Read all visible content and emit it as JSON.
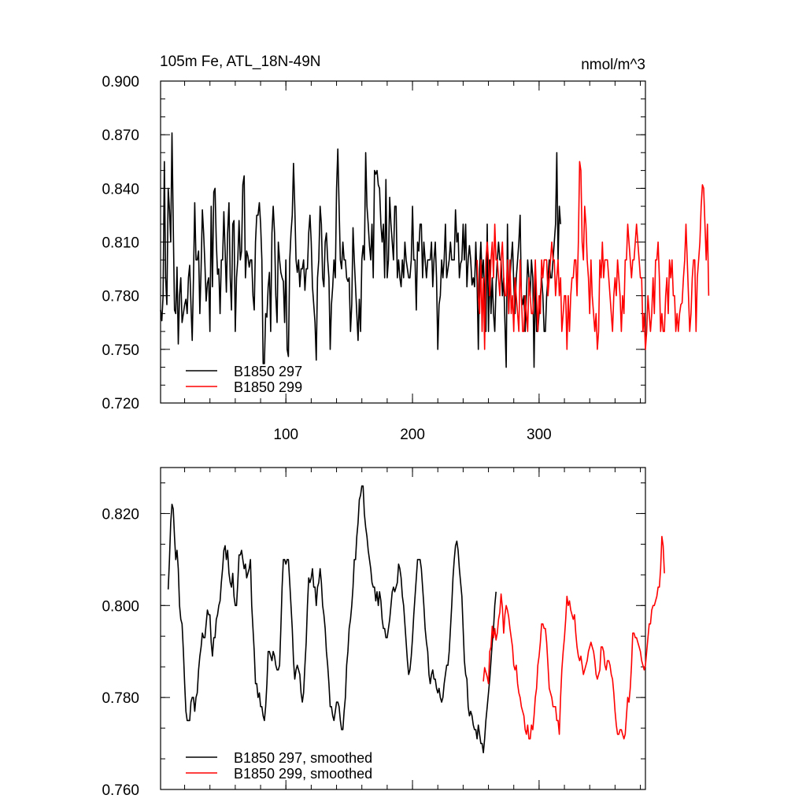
{
  "colors": {
    "series_297": "#000000",
    "series_299": "#ff0000",
    "axes": "#000000",
    "background": "#ffffff"
  },
  "chart_data": [
    {
      "type": "line",
      "title": "105m Fe, ATL_18N-49N",
      "units": "nmol/m^3",
      "xlabel": "",
      "ylabel": "",
      "xlim": [
        1,
        384
      ],
      "ylim": [
        0.72,
        0.9
      ],
      "xticks": [
        100,
        200,
        300
      ],
      "xtick_labels": [
        "100",
        "200",
        "300"
      ],
      "yticks": [
        0.72,
        0.75,
        0.78,
        0.81,
        0.84,
        0.87,
        0.9
      ],
      "ytick_labels": [
        "0.720",
        "0.750",
        "0.780",
        "0.810",
        "0.840",
        "0.870",
        "0.900"
      ],
      "legend": "bottom-left",
      "series": [
        {
          "name": "B1850 297",
          "color": "#000000",
          "x_start": 1,
          "values": [
            0.772,
            0.766,
            0.78,
            0.855,
            0.79,
            0.775,
            0.84,
            0.828,
            0.81,
            0.871,
            0.82,
            0.772,
            0.77,
            0.796,
            0.753,
            0.78,
            0.79,
            0.765,
            0.77,
            0.775,
            0.778,
            0.77,
            0.79,
            0.797,
            0.775,
            0.755,
            0.79,
            0.832,
            0.8,
            0.8,
            0.805,
            0.77,
            0.795,
            0.828,
            0.815,
            0.798,
            0.777,
            0.787,
            0.79,
            0.76,
            0.83,
            0.785,
            0.838,
            0.84,
            0.81,
            0.792,
            0.795,
            0.77,
            0.8,
            0.8,
            0.827,
            0.805,
            0.782,
            0.815,
            0.832,
            0.79,
            0.772,
            0.82,
            0.822,
            0.76,
            0.79,
            0.8,
            0.822,
            0.8,
            0.805,
            0.842,
            0.847,
            0.79,
            0.805,
            0.802,
            0.796,
            0.8,
            0.8,
            0.78,
            0.772,
            0.81,
            0.825,
            0.825,
            0.832,
            0.82,
            0.8,
            0.742,
            0.742,
            0.77,
            0.768,
            0.785,
            0.793,
            0.76,
            0.815,
            0.83,
            0.815,
            0.78,
            0.765,
            0.81,
            0.8,
            0.793,
            0.79,
            0.788,
            0.765,
            0.8,
            0.75,
            0.746,
            0.8,
            0.815,
            0.825,
            0.854,
            0.83,
            0.8,
            0.793,
            0.8,
            0.785,
            0.795,
            0.795,
            0.8,
            0.783,
            0.795,
            0.795,
            0.815,
            0.825,
            0.81,
            0.785,
            0.775,
            0.765,
            0.744,
            0.79,
            0.8,
            0.83,
            0.82,
            0.79,
            0.785,
            0.81,
            0.815,
            0.8,
            0.79,
            0.75,
            0.775,
            0.785,
            0.8,
            0.79,
            0.84,
            0.862,
            0.83,
            0.8,
            0.795,
            0.81,
            0.8,
            0.8,
            0.79,
            0.788,
            0.79,
            0.76,
            0.775,
            0.818,
            0.8,
            0.785,
            0.77,
            0.755,
            0.778,
            0.76,
            0.8,
            0.808,
            0.8,
            0.86,
            0.83,
            0.82,
            0.808,
            0.8,
            0.82,
            0.79,
            0.85,
            0.848,
            0.85,
            0.842,
            0.84,
            0.82,
            0.81,
            0.82,
            0.79,
            0.845,
            0.79,
            0.8,
            0.835,
            0.82,
            0.81,
            0.8,
            0.83,
            0.83,
            0.79,
            0.8,
            0.79,
            0.785,
            0.8,
            0.79,
            0.81,
            0.8,
            0.795,
            0.79,
            0.79,
            0.8,
            0.83,
            0.8,
            0.8,
            0.772,
            0.81,
            0.805,
            0.82,
            0.82,
            0.79,
            0.81,
            0.8,
            0.79,
            0.8,
            0.8,
            0.8,
            0.81,
            0.785,
            0.8,
            0.81,
            0.79,
            0.75,
            0.775,
            0.78,
            0.8,
            0.79,
            0.8,
            0.82,
            0.79,
            0.795,
            0.8,
            0.81,
            0.8,
            0.8,
            0.8,
            0.828,
            0.81,
            0.815,
            0.79,
            0.798,
            0.8,
            0.82,
            0.8,
            0.82,
            0.785,
            0.8,
            0.808,
            0.8,
            0.786,
            0.79,
            0.785,
            0.81,
            0.788,
            0.75,
            0.795,
            0.81,
            0.79,
            0.8,
            0.78,
            0.76,
            0.82,
            0.76,
            0.8,
            0.77,
            0.79,
            0.77,
            0.76,
            0.786,
            0.8,
            0.81,
            0.8,
            0.8,
            0.78,
            0.79,
            0.765,
            0.74,
            0.82,
            0.77,
            0.79,
            0.8,
            0.81,
            0.787,
            0.77,
            0.79,
            0.8,
            0.81,
            0.825,
            0.78,
            0.775,
            0.78,
            0.76,
            0.78,
            0.8,
            0.79,
            0.78,
            0.8,
            0.79,
            0.74,
            0.79,
            0.76,
            0.76,
            0.77,
            0.78,
            0.79,
            0.78,
            0.76,
            0.76,
            0.78,
            0.79,
            0.8,
            0.79,
            0.79,
            0.8,
            0.81,
            0.82,
            0.86,
            0.8,
            0.83,
            0.82
          ]
        },
        {
          "name": "B1850 299",
          "color": "#ff0000",
          "x_start": 251,
          "values": [
            0.8,
            0.78,
            0.77,
            0.8,
            0.76,
            0.79,
            0.75,
            0.8,
            0.81,
            0.8,
            0.78,
            0.8,
            0.81,
            0.79,
            0.82,
            0.8,
            0.8,
            0.79,
            0.78,
            0.8,
            0.81,
            0.79,
            0.78,
            0.78,
            0.8,
            0.77,
            0.8,
            0.77,
            0.78,
            0.76,
            0.79,
            0.78,
            0.77,
            0.76,
            0.8,
            0.78,
            0.76,
            0.76,
            0.78,
            0.77,
            0.76,
            0.79,
            0.78,
            0.77,
            0.77,
            0.78,
            0.8,
            0.78,
            0.76,
            0.78,
            0.77,
            0.8,
            0.79,
            0.8,
            0.8,
            0.8,
            0.78,
            0.79,
            0.8,
            0.81,
            0.8,
            0.8,
            0.78,
            0.79,
            0.8,
            0.78,
            0.79,
            0.76,
            0.77,
            0.78,
            0.78,
            0.75,
            0.78,
            0.76,
            0.78,
            0.79,
            0.79,
            0.8,
            0.8,
            0.78,
            0.81,
            0.855,
            0.85,
            0.81,
            0.8,
            0.83,
            0.82,
            0.8,
            0.79,
            0.77,
            0.8,
            0.78,
            0.77,
            0.76,
            0.77,
            0.75,
            0.76,
            0.8,
            0.79,
            0.81,
            0.79,
            0.8,
            0.8,
            0.8,
            0.79,
            0.78,
            0.77,
            0.76,
            0.78,
            0.79,
            0.78,
            0.8,
            0.79,
            0.78,
            0.76,
            0.78,
            0.77,
            0.8,
            0.8,
            0.82,
            0.81,
            0.8,
            0.79,
            0.8,
            0.8,
            0.81,
            0.82,
            0.81,
            0.8,
            0.79,
            0.79,
            0.76,
            0.77,
            0.75,
            0.76,
            0.78,
            0.77,
            0.76,
            0.77,
            0.79,
            0.77,
            0.8,
            0.8,
            0.81,
            0.79,
            0.76,
            0.77,
            0.76,
            0.76,
            0.78,
            0.79,
            0.77,
            0.8,
            0.79,
            0.8,
            0.78,
            0.78,
            0.76,
            0.77,
            0.76,
            0.77,
            0.775,
            0.776,
            0.79,
            0.8,
            0.82,
            0.8,
            0.78,
            0.76,
            0.77,
            0.79,
            0.8,
            0.8,
            0.76,
            0.79,
            0.8,
            0.81,
            0.83,
            0.842,
            0.84,
            0.82,
            0.8,
            0.82,
            0.78
          ]
        }
      ]
    },
    {
      "type": "line",
      "title": "",
      "xlim": [
        1,
        384
      ],
      "ylim": [
        0.76,
        0.83
      ],
      "xticks": [
        100,
        200,
        300
      ],
      "yticks": [
        0.76,
        0.78,
        0.8,
        0.82
      ],
      "ytick_labels": [
        "0.760",
        "0.780",
        "0.800",
        "0.820"
      ],
      "legend": "bottom-left",
      "series": [
        {
          "name": "B1850 297, smoothed",
          "color": "#000000",
          "x_start": 7,
          "values": [
            0.8035,
            0.81,
            0.818,
            0.822,
            0.821,
            0.815,
            0.81,
            0.812,
            0.808,
            0.8,
            0.797,
            0.796,
            0.79,
            0.783,
            0.777,
            0.775,
            0.775,
            0.775,
            0.779,
            0.78,
            0.78,
            0.777,
            0.78,
            0.781,
            0.786,
            0.789,
            0.791,
            0.794,
            0.793,
            0.793,
            0.796,
            0.799,
            0.798,
            0.798,
            0.792,
            0.789,
            0.793,
            0.793,
            0.797,
            0.798,
            0.8,
            0.801,
            0.805,
            0.808,
            0.812,
            0.813,
            0.81,
            0.812,
            0.807,
            0.805,
            0.804,
            0.807,
            0.802,
            0.8,
            0.8,
            0.805,
            0.811,
            0.811,
            0.812,
            0.81,
            0.808,
            0.809,
            0.806,
            0.807,
            0.808,
            0.81,
            0.8,
            0.795,
            0.79,
            0.783,
            0.783,
            0.78,
            0.781,
            0.778,
            0.778,
            0.776,
            0.775,
            0.778,
            0.783,
            0.79,
            0.79,
            0.789,
            0.788,
            0.79,
            0.789,
            0.787,
            0.786,
            0.786,
            0.787,
            0.795,
            0.804,
            0.81,
            0.81,
            0.809,
            0.81,
            0.81,
            0.805,
            0.8,
            0.795,
            0.788,
            0.784,
            0.786,
            0.787,
            0.786,
            0.785,
            0.781,
            0.779,
            0.781,
            0.787,
            0.792,
            0.8,
            0.806,
            0.805,
            0.806,
            0.808,
            0.804,
            0.804,
            0.8,
            0.804,
            0.805,
            0.808,
            0.805,
            0.8,
            0.798,
            0.795,
            0.79,
            0.787,
            0.783,
            0.778,
            0.778,
            0.776,
            0.775,
            0.777,
            0.779,
            0.779,
            0.778,
            0.775,
            0.773,
            0.773,
            0.777,
            0.78,
            0.787,
            0.79,
            0.795,
            0.797,
            0.8,
            0.804,
            0.81,
            0.81,
            0.815,
            0.818,
            0.823,
            0.824,
            0.826,
            0.826,
            0.82,
            0.817,
            0.815,
            0.812,
            0.81,
            0.808,
            0.805,
            0.804,
            0.804,
            0.801,
            0.803,
            0.8,
            0.803,
            0.801,
            0.797,
            0.795,
            0.795,
            0.793,
            0.793,
            0.795,
            0.797,
            0.8,
            0.803,
            0.804,
            0.803,
            0.804,
            0.805,
            0.809,
            0.808,
            0.806,
            0.802,
            0.8,
            0.796,
            0.792,
            0.788,
            0.785,
            0.786,
            0.789,
            0.793,
            0.798,
            0.802,
            0.806,
            0.81,
            0.81,
            0.81,
            0.808,
            0.804,
            0.8,
            0.795,
            0.792,
            0.79,
            0.785,
            0.783,
            0.785,
            0.786,
            0.784,
            0.784,
            0.782,
            0.781,
            0.782,
            0.78,
            0.779,
            0.78,
            0.783,
            0.785,
            0.787,
            0.787,
            0.79,
            0.795,
            0.8,
            0.806,
            0.81,
            0.813,
            0.814,
            0.812,
            0.808,
            0.805,
            0.802,
            0.795,
            0.788,
            0.785,
            0.784,
            0.778,
            0.776,
            0.777,
            0.776,
            0.774,
            0.773,
            0.773,
            0.771,
            0.774,
            0.772,
            0.77,
            0.77,
            0.768,
            0.771,
            0.775,
            0.778,
            0.781,
            0.784,
            0.788,
            0.792,
            0.795,
            0.8,
            0.803
          ]
        },
        {
          "name": "B1850 299, smoothed",
          "color": "#ff0000",
          "x_start": 256,
          "values": [
            0.7835,
            0.7865,
            0.7855,
            0.7845,
            0.783,
            0.79,
            0.791,
            0.7955,
            0.793,
            0.795,
            0.7925,
            0.794,
            0.797,
            0.7985,
            0.8025,
            0.7995,
            0.794,
            0.798,
            0.8,
            0.799,
            0.7975,
            0.795,
            0.793,
            0.791,
            0.787,
            0.786,
            0.787,
            0.783,
            0.781,
            0.78,
            0.778,
            0.777,
            0.776,
            0.773,
            0.772,
            0.774,
            0.771,
            0.771,
            0.774,
            0.773,
            0.776,
            0.78,
            0.782,
            0.787,
            0.789,
            0.792,
            0.796,
            0.796,
            0.795,
            0.795,
            0.792,
            0.787,
            0.782,
            0.781,
            0.78,
            0.778,
            0.778,
            0.778,
            0.775,
            0.775,
            0.772,
            0.78,
            0.786,
            0.79,
            0.793,
            0.797,
            0.802,
            0.8,
            0.801,
            0.799,
            0.798,
            0.797,
            0.798,
            0.794,
            0.791,
            0.789,
            0.788,
            0.789,
            0.787,
            0.785,
            0.786,
            0.787,
            0.788,
            0.79,
            0.791,
            0.792,
            0.791,
            0.79,
            0.788,
            0.785,
            0.784,
            0.785,
            0.786,
            0.791,
            0.791,
            0.79,
            0.787,
            0.786,
            0.788,
            0.788,
            0.787,
            0.785,
            0.784,
            0.781,
            0.777,
            0.774,
            0.772,
            0.772,
            0.773,
            0.773,
            0.772,
            0.771,
            0.772,
            0.776,
            0.78,
            0.779,
            0.782,
            0.787,
            0.794,
            0.794,
            0.793,
            0.793,
            0.792,
            0.791,
            0.79,
            0.788,
            0.787,
            0.786,
            0.787,
            0.79,
            0.793,
            0.796,
            0.796,
            0.799,
            0.8,
            0.8,
            0.801,
            0.802,
            0.804,
            0.804,
            0.808,
            0.815,
            0.813,
            0.807
          ]
        }
      ]
    }
  ]
}
